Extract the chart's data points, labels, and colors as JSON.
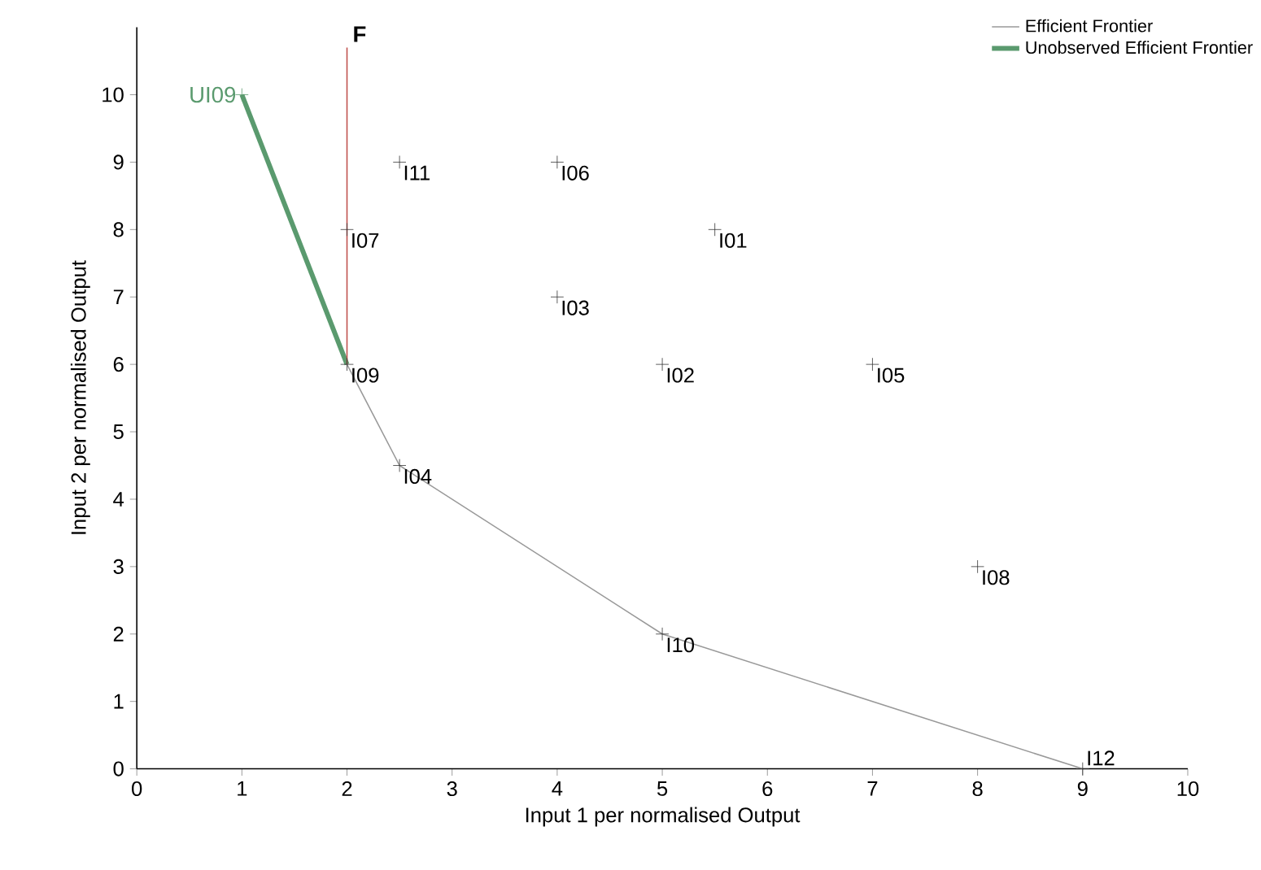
{
  "chart_data": {
    "type": "scatter",
    "xlabel": "Input 1 per normalised Output",
    "ylabel": "Input 2 per normalised Output",
    "xlim": [
      0,
      10
    ],
    "ylim": [
      0,
      11
    ],
    "xticks": [
      0,
      1,
      2,
      3,
      4,
      5,
      6,
      7,
      8,
      9,
      10
    ],
    "yticks": [
      0,
      1,
      2,
      3,
      4,
      5,
      6,
      7,
      8,
      9,
      10
    ],
    "marker": "cross",
    "legend": "top right",
    "grid": false,
    "series": [
      {
        "color": "#333333",
        "x": [
          5.5,
          5,
          4,
          2.5,
          7,
          4,
          2,
          8,
          2,
          5,
          2.5,
          9
        ],
        "values": [
          8,
          6,
          7,
          4.5,
          6,
          9,
          8,
          3,
          6,
          2,
          9,
          0
        ]
      },
      {
        "type": "line",
        "marker": "none",
        "name": "Efficient Frontier",
        "color": "#999999",
        "x": [
          2,
          2.5,
          5,
          9
        ],
        "values": [
          6,
          4.5,
          2,
          0
        ]
      },
      {
        "type": "line",
        "marker": "none",
        "name": "Unobserved Efficient Frontier",
        "color": "#5a9a6e",
        "x": [
          1,
          2
        ],
        "values": [
          10,
          6
        ]
      },
      {
        "type": "line",
        "marker": "none",
        "name": "F",
        "color": "#c0504d",
        "x": [
          2,
          2
        ],
        "values": [
          6,
          10.7
        ]
      },
      {
        "type": "scatter",
        "name": "UI09",
        "color": "#5a9a6e",
        "x": [
          1
        ],
        "values": [
          10
        ]
      }
    ],
    "annotations": [
      {
        "text": "I01",
        "x": 5.5,
        "y": 8
      },
      {
        "text": "I02",
        "x": 5,
        "y": 6
      },
      {
        "text": "I03",
        "x": 4,
        "y": 7
      },
      {
        "text": "I04",
        "x": 2.5,
        "y": 4.5
      },
      {
        "text": "I05",
        "x": 7,
        "y": 6
      },
      {
        "text": "I06",
        "x": 4,
        "y": 9
      },
      {
        "text": "I07",
        "x": 2,
        "y": 8
      },
      {
        "text": "I08",
        "x": 8,
        "y": 3
      },
      {
        "text": "I09",
        "x": 2,
        "y": 6
      },
      {
        "text": "I10",
        "x": 5,
        "y": 2
      },
      {
        "text": "I11",
        "x": 2.5,
        "y": 9
      },
      {
        "text": "I12",
        "x": 9,
        "y": 0
      }
    ]
  }
}
